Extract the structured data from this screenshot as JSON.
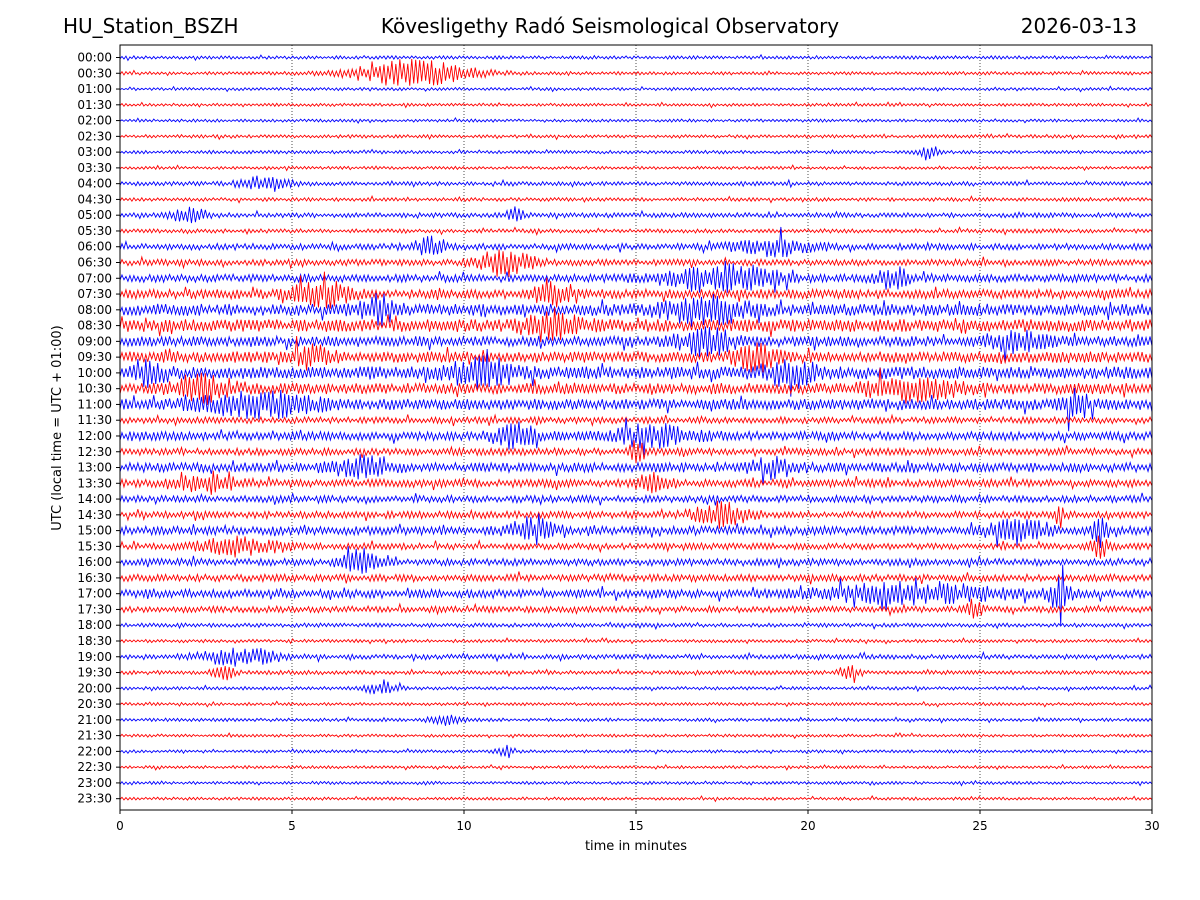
{
  "header": {
    "station": "HU_Station_BSZH",
    "observatory": "Kövesligethy Radó Seismological Observatory",
    "date": "2026-03-13"
  },
  "chart_data": {
    "type": "line",
    "title": "Kövesligethy Radó Seismological Observatory",
    "xlabel": "time in minutes",
    "ylabel": "UTC (local time = UTC + 01:00)",
    "xlim": [
      0,
      30
    ],
    "xticks": [
      0,
      5,
      10,
      15,
      20,
      25,
      30
    ],
    "grid": "vertical dotted at 5-minute ticks",
    "colors": [
      "#0000ff",
      "#ff0000"
    ],
    "series_note": "48 half-hour helicorder traces alternating blue/red; level = relative amplitude 0-1",
    "traces": [
      {
        "label": "00:00",
        "color": "#0000ff",
        "level": 0.1,
        "events": []
      },
      {
        "label": "00:30",
        "color": "#ff0000",
        "level": 0.1,
        "events": [
          [
            8.5,
            2.2,
            1.0
          ]
        ]
      },
      {
        "label": "01:00",
        "color": "#0000ff",
        "level": 0.08,
        "events": []
      },
      {
        "label": "01:30",
        "color": "#ff0000",
        "level": 0.08,
        "events": []
      },
      {
        "label": "02:00",
        "color": "#0000ff",
        "level": 0.08,
        "events": []
      },
      {
        "label": "02:30",
        "color": "#ff0000",
        "level": 0.1,
        "events": []
      },
      {
        "label": "03:00",
        "color": "#0000ff",
        "level": 0.1,
        "events": [
          [
            23.5,
            0.4,
            0.5
          ]
        ]
      },
      {
        "label": "03:30",
        "color": "#ff0000",
        "level": 0.08,
        "events": []
      },
      {
        "label": "04:00",
        "color": "#0000ff",
        "level": 0.15,
        "events": [
          [
            4.2,
            0.9,
            0.6
          ]
        ]
      },
      {
        "label": "04:30",
        "color": "#ff0000",
        "level": 0.12,
        "events": []
      },
      {
        "label": "05:00",
        "color": "#0000ff",
        "level": 0.2,
        "events": [
          [
            2.0,
            0.6,
            0.6
          ],
          [
            11.5,
            0.3,
            0.5
          ]
        ]
      },
      {
        "label": "05:30",
        "color": "#ff0000",
        "level": 0.15,
        "events": []
      },
      {
        "label": "06:00",
        "color": "#0000ff",
        "level": 0.3,
        "events": [
          [
            9.0,
            0.5,
            0.7
          ],
          [
            19.0,
            1.5,
            0.6
          ]
        ]
      },
      {
        "label": "06:30",
        "color": "#ff0000",
        "level": 0.3,
        "events": [
          [
            11.2,
            1.0,
            0.9
          ]
        ]
      },
      {
        "label": "07:00",
        "color": "#0000ff",
        "level": 0.4,
        "events": [
          [
            17.5,
            2.0,
            1.0
          ],
          [
            22.5,
            0.6,
            0.7
          ]
        ]
      },
      {
        "label": "07:30",
        "color": "#ff0000",
        "level": 0.5,
        "events": [
          [
            5.8,
            1.0,
            0.9
          ],
          [
            12.5,
            0.6,
            1.0
          ]
        ]
      },
      {
        "label": "08:00",
        "color": "#0000ff",
        "level": 0.65,
        "events": [
          [
            7.5,
            0.6,
            0.9
          ],
          [
            17.0,
            1.5,
            0.9
          ]
        ]
      },
      {
        "label": "08:30",
        "color": "#ff0000",
        "level": 0.7,
        "events": [
          [
            12.6,
            1.0,
            1.0
          ]
        ]
      },
      {
        "label": "09:00",
        "color": "#0000ff",
        "level": 0.55,
        "events": [
          [
            17.0,
            1.0,
            0.9
          ],
          [
            26.0,
            1.0,
            0.7
          ]
        ]
      },
      {
        "label": "09:30",
        "color": "#ff0000",
        "level": 0.6,
        "events": [
          [
            5.5,
            0.8,
            0.7
          ],
          [
            18.5,
            0.8,
            0.8
          ]
        ]
      },
      {
        "label": "10:00",
        "color": "#0000ff",
        "level": 0.7,
        "events": [
          [
            0.8,
            0.6,
            0.8
          ],
          [
            10.5,
            1.2,
            0.9
          ],
          [
            19.5,
            1.0,
            0.8
          ]
        ]
      },
      {
        "label": "10:30",
        "color": "#ff0000",
        "level": 0.6,
        "events": [
          [
            2.5,
            1.0,
            0.8
          ],
          [
            23.0,
            1.5,
            0.8
          ]
        ]
      },
      {
        "label": "11:00",
        "color": "#0000ff",
        "level": 0.6,
        "events": [
          [
            4.0,
            2.0,
            0.8
          ],
          [
            27.8,
            0.5,
            1.0
          ]
        ]
      },
      {
        "label": "11:30",
        "color": "#ff0000",
        "level": 0.3,
        "events": []
      },
      {
        "label": "12:00",
        "color": "#0000ff",
        "level": 0.45,
        "events": [
          [
            11.5,
            0.8,
            0.8
          ],
          [
            15.5,
            1.5,
            0.7
          ]
        ]
      },
      {
        "label": "12:30",
        "color": "#ff0000",
        "level": 0.35,
        "events": [
          [
            15.0,
            0.3,
            0.8
          ]
        ]
      },
      {
        "label": "13:00",
        "color": "#0000ff",
        "level": 0.5,
        "events": [
          [
            7.0,
            1.0,
            0.7
          ],
          [
            19.0,
            0.8,
            0.6
          ]
        ]
      },
      {
        "label": "13:30",
        "color": "#ff0000",
        "level": 0.4,
        "events": [
          [
            2.5,
            1.2,
            0.6
          ],
          [
            15.5,
            0.6,
            0.6
          ]
        ]
      },
      {
        "label": "14:00",
        "color": "#0000ff",
        "level": 0.35,
        "events": []
      },
      {
        "label": "14:30",
        "color": "#ff0000",
        "level": 0.35,
        "events": [
          [
            17.5,
            1.0,
            0.8
          ],
          [
            27.3,
            0.2,
            0.8
          ]
        ]
      },
      {
        "label": "15:00",
        "color": "#0000ff",
        "level": 0.45,
        "events": [
          [
            12.0,
            0.8,
            0.8
          ],
          [
            26.0,
            1.0,
            1.0
          ],
          [
            28.5,
            0.3,
            1.0
          ]
        ]
      },
      {
        "label": "15:30",
        "color": "#ff0000",
        "level": 0.3,
        "events": [
          [
            3.5,
            1.5,
            0.6
          ],
          [
            28.5,
            0.3,
            0.8
          ]
        ]
      },
      {
        "label": "16:00",
        "color": "#0000ff",
        "level": 0.35,
        "events": [
          [
            7.0,
            0.6,
            0.9
          ]
        ]
      },
      {
        "label": "16:30",
        "color": "#ff0000",
        "level": 0.35,
        "events": []
      },
      {
        "label": "17:00",
        "color": "#0000ff",
        "level": 0.45,
        "events": [
          [
            23.0,
            3.0,
            0.7
          ],
          [
            27.3,
            0.4,
            1.0
          ]
        ]
      },
      {
        "label": "17:30",
        "color": "#ff0000",
        "level": 0.3,
        "events": [
          [
            24.8,
            0.3,
            0.6
          ]
        ]
      },
      {
        "label": "18:00",
        "color": "#0000ff",
        "level": 0.15,
        "events": []
      },
      {
        "label": "18:30",
        "color": "#ff0000",
        "level": 0.1,
        "events": []
      },
      {
        "label": "19:00",
        "color": "#0000ff",
        "level": 0.2,
        "events": [
          [
            3.5,
            1.5,
            0.6
          ]
        ]
      },
      {
        "label": "19:30",
        "color": "#ff0000",
        "level": 0.15,
        "events": [
          [
            3.0,
            0.4,
            0.5
          ],
          [
            21.2,
            0.4,
            0.5
          ]
        ]
      },
      {
        "label": "20:00",
        "color": "#0000ff",
        "level": 0.1,
        "events": [
          [
            7.6,
            0.6,
            0.4
          ]
        ]
      },
      {
        "label": "20:30",
        "color": "#ff0000",
        "level": 0.08,
        "events": []
      },
      {
        "label": "21:00",
        "color": "#0000ff",
        "level": 0.1,
        "events": [
          [
            9.5,
            0.6,
            0.4
          ]
        ]
      },
      {
        "label": "21:30",
        "color": "#ff0000",
        "level": 0.08,
        "events": []
      },
      {
        "label": "22:00",
        "color": "#0000ff",
        "level": 0.08,
        "events": [
          [
            11.2,
            0.3,
            0.5
          ]
        ]
      },
      {
        "label": "22:30",
        "color": "#ff0000",
        "level": 0.08,
        "events": []
      },
      {
        "label": "23:00",
        "color": "#0000ff",
        "level": 0.08,
        "events": []
      },
      {
        "label": "23:30",
        "color": "#ff0000",
        "level": 0.08,
        "events": []
      }
    ]
  }
}
